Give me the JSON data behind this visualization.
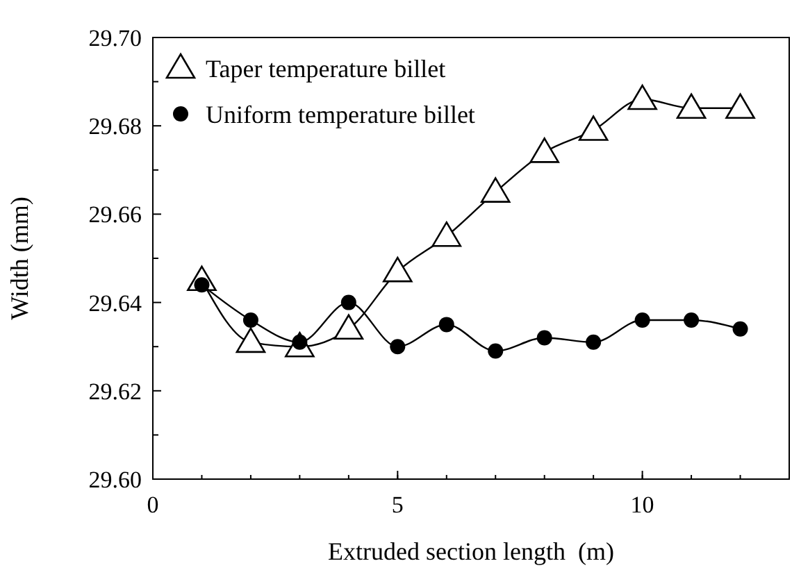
{
  "chart_data": {
    "type": "line",
    "xlabel": "Extruded section length  (m)",
    "ylabel": "Width (mm)",
    "x": [
      1,
      2,
      3,
      4,
      5,
      6,
      7,
      8,
      9,
      10,
      11,
      12
    ],
    "xlim": [
      0,
      13
    ],
    "xticks": [
      0,
      5,
      10
    ],
    "ylim": [
      29.6,
      29.7
    ],
    "yticks": [
      {
        "value": 29.6,
        "label": "29.60"
      },
      {
        "value": 29.61,
        "label": null
      },
      29.62,
      {
        "value": 29.63,
        "label": null
      },
      29.64,
      {
        "value": 29.65,
        "label": null
      },
      29.66,
      {
        "value": 29.67,
        "label": null
      },
      29.68,
      {
        "value": 29.69,
        "label": null
      },
      {
        "value": 29.7,
        "label": "29.70"
      }
    ],
    "grid": false,
    "legend": "top left",
    "series": [
      {
        "name": "Taper temperature billet",
        "color": "#000000",
        "marker": "triangle",
        "values": [
          29.645,
          29.631,
          29.63,
          29.634,
          29.647,
          29.655,
          29.665,
          29.674,
          29.679,
          29.686,
          29.684,
          29.684
        ]
      },
      {
        "name": "Uniform temperature billet",
        "color": "#000000",
        "marker": "circle",
        "values": [
          29.644,
          29.636,
          29.631,
          29.64,
          29.63,
          29.635,
          29.629,
          29.632,
          29.631,
          29.636,
          29.636,
          29.634
        ]
      }
    ]
  }
}
